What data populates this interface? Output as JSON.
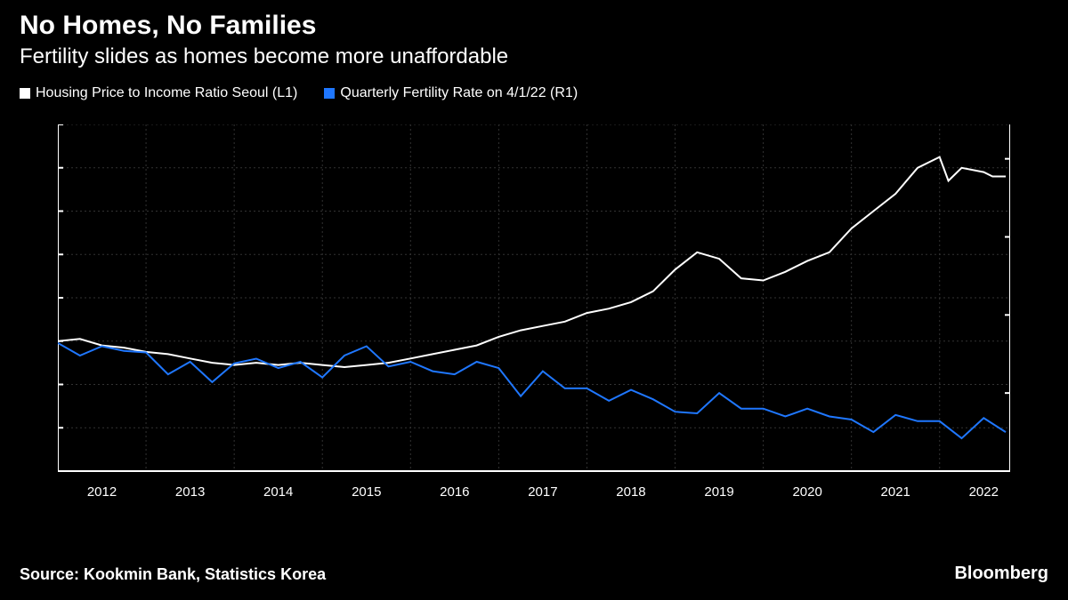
{
  "title": "No Homes, No Families",
  "subtitle": "Fertility slides as homes become more unaffordable",
  "source": "Source: Kookmin Bank, Statistics Korea",
  "brand": "Bloomberg",
  "legend": {
    "series1": {
      "label": "Housing Price to Income Ratio Seoul (L1)",
      "color": "#ffffff"
    },
    "series2": {
      "label": "Quarterly Fertility Rate on 4/1/22 (R1)",
      "color": "#1f77ff"
    }
  },
  "chart": {
    "type": "line-dual-axis",
    "background_color": "#000000",
    "grid_color": "#333333",
    "grid_dash": "2,3",
    "axis_color": "#ffffff",
    "axis_width": 2,
    "line_width": 2,
    "x": {
      "domain_min": 2011.5,
      "domain_max": 2022.3,
      "ticks": [
        2012,
        2013,
        2014,
        2015,
        2016,
        2017,
        2018,
        2019,
        2020,
        2021,
        2022
      ]
    },
    "left_axis": {
      "min": 4.0,
      "max": 20.0,
      "ticks": [
        6.0,
        8.0,
        10.0,
        12.0,
        14.0,
        16.0,
        18.0,
        20.0
      ],
      "end_value": 17.6,
      "end_box_fill": "#ffffff",
      "end_box_text_color": "#000000"
    },
    "right_axis": {
      "min": 0.5,
      "max": 2.72,
      "ticks": [
        1.0,
        1.5,
        2.0,
        2.5
      ],
      "end_value": 0.75,
      "end_box_fill": "#1f77ff",
      "end_box_text_color": "#ffffff"
    },
    "series1": {
      "color": "#ffffff",
      "points": [
        [
          2011.5,
          10.0
        ],
        [
          2011.75,
          10.1
        ],
        [
          2012.0,
          9.8
        ],
        [
          2012.25,
          9.7
        ],
        [
          2012.5,
          9.5
        ],
        [
          2012.75,
          9.4
        ],
        [
          2013.0,
          9.2
        ],
        [
          2013.25,
          9.0
        ],
        [
          2013.5,
          8.9
        ],
        [
          2013.75,
          9.0
        ],
        [
          2014.0,
          8.9
        ],
        [
          2014.25,
          9.0
        ],
        [
          2014.5,
          8.9
        ],
        [
          2014.75,
          8.8
        ],
        [
          2015.0,
          8.9
        ],
        [
          2015.25,
          9.0
        ],
        [
          2015.5,
          9.2
        ],
        [
          2015.75,
          9.4
        ],
        [
          2016.0,
          9.6
        ],
        [
          2016.25,
          9.8
        ],
        [
          2016.5,
          10.2
        ],
        [
          2016.75,
          10.5
        ],
        [
          2017.0,
          10.7
        ],
        [
          2017.25,
          10.9
        ],
        [
          2017.5,
          11.3
        ],
        [
          2017.75,
          11.5
        ],
        [
          2018.0,
          11.8
        ],
        [
          2018.25,
          12.3
        ],
        [
          2018.5,
          13.3
        ],
        [
          2018.75,
          14.1
        ],
        [
          2019.0,
          13.8
        ],
        [
          2019.25,
          12.9
        ],
        [
          2019.5,
          12.8
        ],
        [
          2019.75,
          13.2
        ],
        [
          2020.0,
          13.7
        ],
        [
          2020.25,
          14.1
        ],
        [
          2020.5,
          15.2
        ],
        [
          2020.75,
          16.0
        ],
        [
          2021.0,
          16.8
        ],
        [
          2021.25,
          18.0
        ],
        [
          2021.5,
          18.5
        ],
        [
          2021.6,
          17.4
        ],
        [
          2021.75,
          18.0
        ],
        [
          2022.0,
          17.8
        ],
        [
          2022.1,
          17.6
        ],
        [
          2022.25,
          17.6
        ]
      ]
    },
    "series2": {
      "color": "#1f77ff",
      "points": [
        [
          2011.5,
          1.32
        ],
        [
          2011.75,
          1.24
        ],
        [
          2012.0,
          1.3
        ],
        [
          2012.25,
          1.27
        ],
        [
          2012.5,
          1.26
        ],
        [
          2012.75,
          1.12
        ],
        [
          2013.0,
          1.2
        ],
        [
          2013.25,
          1.07
        ],
        [
          2013.5,
          1.19
        ],
        [
          2013.75,
          1.22
        ],
        [
          2014.0,
          1.16
        ],
        [
          2014.25,
          1.2
        ],
        [
          2014.5,
          1.1
        ],
        [
          2014.75,
          1.24
        ],
        [
          2015.0,
          1.3
        ],
        [
          2015.25,
          1.17
        ],
        [
          2015.5,
          1.2
        ],
        [
          2015.75,
          1.14
        ],
        [
          2016.0,
          1.12
        ],
        [
          2016.25,
          1.2
        ],
        [
          2016.5,
          1.16
        ],
        [
          2016.75,
          0.98
        ],
        [
          2017.0,
          1.14
        ],
        [
          2017.25,
          1.03
        ],
        [
          2017.5,
          1.03
        ],
        [
          2017.75,
          0.95
        ],
        [
          2018.0,
          1.02
        ],
        [
          2018.25,
          0.96
        ],
        [
          2018.5,
          0.88
        ],
        [
          2018.75,
          0.87
        ],
        [
          2019.0,
          1.0
        ],
        [
          2019.25,
          0.9
        ],
        [
          2019.5,
          0.9
        ],
        [
          2019.75,
          0.85
        ],
        [
          2020.0,
          0.9
        ],
        [
          2020.25,
          0.85
        ],
        [
          2020.5,
          0.83
        ],
        [
          2020.75,
          0.75
        ],
        [
          2021.0,
          0.86
        ],
        [
          2021.25,
          0.82
        ],
        [
          2021.5,
          0.82
        ],
        [
          2021.75,
          0.71
        ],
        [
          2022.0,
          0.84
        ],
        [
          2022.25,
          0.75
        ]
      ]
    }
  }
}
